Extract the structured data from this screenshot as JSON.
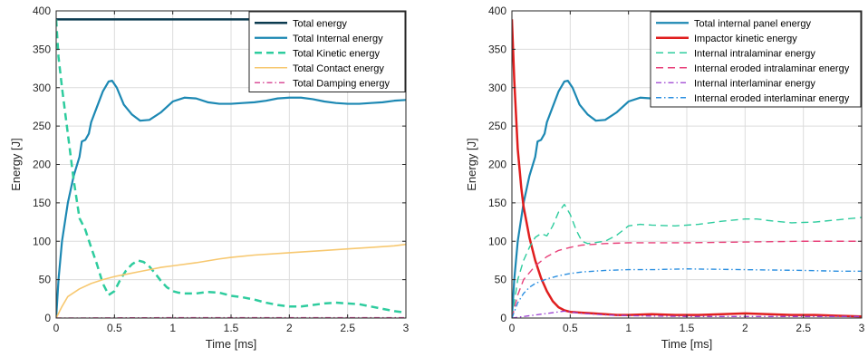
{
  "chart_data": [
    {
      "type": "line",
      "xlabel": "Time [ms]",
      "ylabel": "Energy [J]",
      "xlim": [
        0,
        3
      ],
      "ylim": [
        0,
        400
      ],
      "xticks": [
        "0",
        "0.5",
        "1",
        "1.5",
        "2",
        "2.5",
        "3"
      ],
      "yticks": [
        "0",
        "50",
        "100",
        "150",
        "200",
        "250",
        "300",
        "350",
        "400"
      ],
      "grid": true,
      "legend_position": "top-right",
      "series": [
        {
          "name": "Total energy",
          "color": "#0b3a4f",
          "dash": "solid",
          "width": 2.5,
          "x": [
            0,
            0.5,
            1,
            1.5,
            2,
            2.5,
            3
          ],
          "y": [
            389,
            389,
            389,
            389,
            389,
            389,
            389
          ]
        },
        {
          "name": "Total Internal energy",
          "color": "#1c88b3",
          "dash": "solid",
          "width": 2.2,
          "x": [
            0,
            0.02,
            0.05,
            0.1,
            0.15,
            0.2,
            0.22,
            0.25,
            0.28,
            0.3,
            0.35,
            0.4,
            0.45,
            0.48,
            0.52,
            0.58,
            0.65,
            0.72,
            0.8,
            0.9,
            1.0,
            1.1,
            1.2,
            1.3,
            1.4,
            1.5,
            1.6,
            1.7,
            1.8,
            1.9,
            2.0,
            2.1,
            2.2,
            2.3,
            2.4,
            2.5,
            2.6,
            2.7,
            2.8,
            2.9,
            3.0
          ],
          "y": [
            0,
            50,
            100,
            150,
            185,
            210,
            230,
            232,
            240,
            255,
            275,
            295,
            308,
            309,
            300,
            278,
            265,
            257,
            258,
            268,
            282,
            287,
            286,
            281,
            279,
            279,
            280,
            281,
            283,
            286,
            287,
            287,
            285,
            282,
            280,
            279,
            279,
            280,
            281,
            283,
            284
          ]
        },
        {
          "name": "Total Kinetic energy",
          "color": "#2ecc9e",
          "dash": "8,5",
          "width": 2.5,
          "x": [
            0,
            0.02,
            0.05,
            0.1,
            0.15,
            0.2,
            0.25,
            0.3,
            0.35,
            0.4,
            0.45,
            0.5,
            0.55,
            0.6,
            0.65,
            0.7,
            0.75,
            0.8,
            0.85,
            0.9,
            0.95,
            1.0,
            1.05,
            1.1,
            1.2,
            1.3,
            1.4,
            1.5,
            1.6,
            1.7,
            1.8,
            1.9,
            2.0,
            2.1,
            2.2,
            2.3,
            2.4,
            2.5,
            2.6,
            2.7,
            2.8,
            2.9,
            3.0
          ],
          "y": [
            389,
            340,
            300,
            240,
            180,
            130,
            115,
            92,
            70,
            45,
            30,
            35,
            50,
            62,
            70,
            75,
            73,
            67,
            58,
            48,
            40,
            35,
            33,
            32,
            32,
            34,
            33,
            29,
            27,
            24,
            20,
            17,
            15,
            15,
            17,
            19,
            20,
            19,
            18,
            15,
            12,
            9,
            7
          ]
        },
        {
          "name": "Total Contact energy",
          "color": "#f7c870",
          "dash": "solid",
          "width": 1.6,
          "x": [
            0,
            0.05,
            0.1,
            0.2,
            0.3,
            0.4,
            0.5,
            0.6,
            0.7,
            0.8,
            0.9,
            1.0,
            1.2,
            1.4,
            1.5,
            1.7,
            2.0,
            2.3,
            2.5,
            2.7,
            2.9,
            3.0
          ],
          "y": [
            0,
            15,
            28,
            38,
            45,
            50,
            54,
            57,
            60,
            63,
            66,
            68,
            72,
            77,
            79,
            82,
            85,
            88,
            90,
            92,
            94,
            96
          ]
        },
        {
          "name": "Total Damping energy",
          "color": "#d94f9a",
          "dash": "6,3,1.5,3",
          "width": 1.4,
          "x": [
            0,
            1,
            2,
            3
          ],
          "y": [
            0,
            0.5,
            0.5,
            0.5
          ]
        }
      ]
    },
    {
      "type": "line",
      "xlabel": "Time [ms]",
      "ylabel": "Energy [J]",
      "xlim": [
        0,
        3
      ],
      "ylim": [
        0,
        400
      ],
      "xticks": [
        "0",
        "0.5",
        "1",
        "1.5",
        "2",
        "2.5",
        "3"
      ],
      "yticks": [
        "0",
        "50",
        "100",
        "150",
        "200",
        "250",
        "300",
        "350",
        "400"
      ],
      "grid": true,
      "legend_position": "top-right",
      "series": [
        {
          "name": "Total internal panel energy",
          "color": "#1c88b3",
          "dash": "solid",
          "width": 2.2,
          "x": [
            0,
            0.02,
            0.05,
            0.1,
            0.15,
            0.2,
            0.22,
            0.25,
            0.28,
            0.3,
            0.35,
            0.4,
            0.45,
            0.48,
            0.52,
            0.58,
            0.65,
            0.72,
            0.8,
            0.9,
            1.0,
            1.1,
            1.2,
            1.3,
            1.4,
            1.5,
            1.6,
            1.7,
            1.8,
            1.9,
            2.0,
            2.1,
            2.2,
            2.3,
            2.4,
            2.5,
            2.6,
            2.7,
            2.8,
            2.9,
            3.0
          ],
          "y": [
            0,
            50,
            100,
            150,
            185,
            210,
            230,
            232,
            240,
            255,
            275,
            295,
            308,
            309,
            300,
            278,
            265,
            257,
            258,
            268,
            282,
            287,
            286,
            281,
            279,
            279,
            280,
            281,
            283,
            286,
            287,
            287,
            285,
            282,
            280,
            279,
            279,
            280,
            281,
            283,
            284
          ]
        },
        {
          "name": "Impactor kinetic energy",
          "color": "#e01e1e",
          "dash": "solid",
          "width": 2.5,
          "x": [
            0,
            0.02,
            0.05,
            0.08,
            0.1,
            0.15,
            0.2,
            0.25,
            0.3,
            0.35,
            0.4,
            0.45,
            0.5,
            0.6,
            0.7,
            0.8,
            0.9,
            1.0,
            1.2,
            1.4,
            1.6,
            1.8,
            2.0,
            2.2,
            2.4,
            2.6,
            2.8,
            3.0
          ],
          "y": [
            389,
            310,
            220,
            170,
            145,
            105,
            75,
            52,
            35,
            22,
            14,
            10,
            8,
            7,
            6,
            5,
            4,
            4,
            5,
            4,
            4,
            5,
            6,
            5,
            4,
            4,
            3,
            2
          ]
        },
        {
          "name": "Internal intralaminar energy",
          "color": "#2ecc9e",
          "dash": "8,5",
          "width": 1.4,
          "x": [
            0,
            0.05,
            0.1,
            0.15,
            0.2,
            0.25,
            0.3,
            0.35,
            0.4,
            0.45,
            0.5,
            0.55,
            0.6,
            0.65,
            0.7,
            0.8,
            0.9,
            1.0,
            1.1,
            1.2,
            1.4,
            1.6,
            1.8,
            2.0,
            2.1,
            2.2,
            2.4,
            2.6,
            2.8,
            3.0
          ],
          "y": [
            0,
            50,
            75,
            92,
            105,
            110,
            107,
            120,
            138,
            148,
            135,
            115,
            100,
            97,
            98,
            100,
            108,
            120,
            122,
            121,
            120,
            122,
            126,
            129,
            129,
            127,
            124,
            125,
            128,
            131
          ]
        },
        {
          "name": "Internal eroded intralaminar energy",
          "color": "#e8417a",
          "dash": "8,5",
          "width": 1.4,
          "x": [
            0,
            0.05,
            0.1,
            0.2,
            0.3,
            0.4,
            0.5,
            0.6,
            0.7,
            0.8,
            1.0,
            1.5,
            2.0,
            2.5,
            3.0
          ],
          "y": [
            0,
            30,
            50,
            68,
            80,
            88,
            92,
            95,
            96,
            97,
            98,
            98,
            99,
            100,
            100
          ]
        },
        {
          "name": "Internal interlaminar energy",
          "color": "#9b3fd1",
          "dash": "6,3,1.5,3",
          "width": 1.3,
          "x": [
            0,
            0.1,
            0.2,
            0.3,
            0.4,
            0.45,
            0.5,
            0.6,
            0.7,
            0.8,
            1.0,
            1.5,
            2.0,
            2.5,
            3.0
          ],
          "y": [
            0,
            2,
            4,
            6,
            8,
            9,
            8,
            6,
            5,
            4,
            3,
            2,
            2,
            2,
            2
          ]
        },
        {
          "name": "Internal eroded interlaminar energy",
          "color": "#2b8fe0",
          "dash": "6,3,1.5,3",
          "width": 1.4,
          "x": [
            0,
            0.05,
            0.1,
            0.15,
            0.2,
            0.3,
            0.4,
            0.5,
            0.6,
            0.7,
            0.8,
            1.0,
            1.2,
            1.5,
            2.0,
            2.5,
            2.8,
            3.0
          ],
          "y": [
            0,
            20,
            32,
            40,
            45,
            51,
            55,
            58,
            60,
            61,
            62,
            63,
            63,
            64,
            63,
            62,
            61,
            61
          ]
        }
      ]
    }
  ]
}
